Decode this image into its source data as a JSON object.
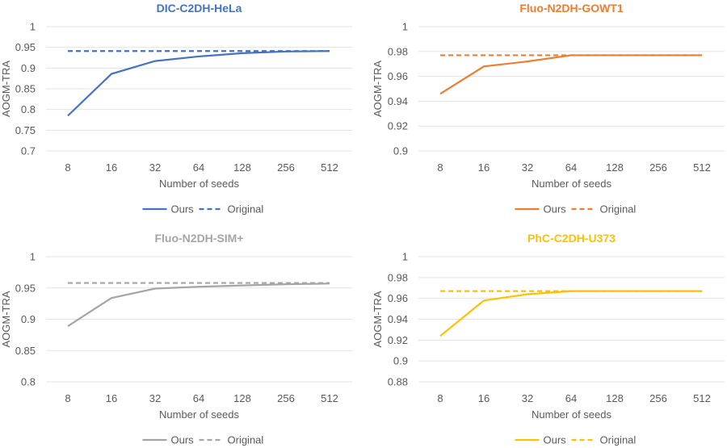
{
  "chart_data": [
    {
      "type": "line",
      "title": "DIC-C2DH-HeLa",
      "color": "#4472C4",
      "xlabel": "Number of seeds",
      "ylabel": "AOGM-TRA",
      "categories": [
        "8",
        "16",
        "32",
        "64",
        "128",
        "256",
        "512"
      ],
      "ylim": [
        0.7,
        1
      ],
      "yticks": [
        "0.7",
        "0.75",
        "0.8",
        "0.85",
        "0.9",
        "0.95",
        "1"
      ],
      "series": [
        {
          "name": "Ours",
          "style": "solid",
          "values": [
            0.785,
            0.886,
            0.917,
            0.928,
            0.936,
            0.94,
            0.941
          ]
        },
        {
          "name": "Original",
          "style": "dashed",
          "values": [
            0.941,
            0.941,
            0.941,
            0.941,
            0.941,
            0.941,
            0.941
          ]
        }
      ],
      "legend": "bottom"
    },
    {
      "type": "line",
      "title": "Fluo-N2DH-GOWT1",
      "color": "#ED7D31",
      "xlabel": "Number of seeds",
      "ylabel": "AOGM-TRA",
      "categories": [
        "8",
        "16",
        "32",
        "64",
        "128",
        "256",
        "512"
      ],
      "ylim": [
        0.9,
        1
      ],
      "yticks": [
        "0.9",
        "0.92",
        "0.94",
        "0.96",
        "0.98",
        "1"
      ],
      "series": [
        {
          "name": "Ours",
          "style": "solid",
          "values": [
            0.946,
            0.968,
            0.972,
            0.977,
            0.977,
            0.977,
            0.977
          ]
        },
        {
          "name": "Original",
          "style": "dashed",
          "values": [
            0.977,
            0.977,
            0.977,
            0.977,
            0.977,
            0.977,
            0.977
          ]
        }
      ],
      "legend": "bottom"
    },
    {
      "type": "line",
      "title": "Fluo-N2DH-SIM+",
      "color": "#A5A5A5",
      "xlabel": "Number of seeds",
      "ylabel": "AOGM-TRA",
      "categories": [
        "8",
        "16",
        "32",
        "64",
        "128",
        "256",
        "512"
      ],
      "ylim": [
        0.8,
        1
      ],
      "yticks": [
        "0.8",
        "0.85",
        "0.9",
        "0.95",
        "1"
      ],
      "series": [
        {
          "name": "Ours",
          "style": "solid",
          "values": [
            0.889,
            0.934,
            0.949,
            0.952,
            0.954,
            0.956,
            0.957
          ]
        },
        {
          "name": "Original",
          "style": "dashed",
          "values": [
            0.958,
            0.958,
            0.958,
            0.958,
            0.958,
            0.958,
            0.958
          ]
        }
      ],
      "legend": "bottom"
    },
    {
      "type": "line",
      "title": "PhC-C2DH-U373",
      "color": "#FFC000",
      "xlabel": "Number of seeds",
      "ylabel": "AOGM-TRA",
      "categories": [
        "8",
        "16",
        "32",
        "64",
        "128",
        "256",
        "512"
      ],
      "ylim": [
        0.88,
        1
      ],
      "yticks": [
        "0.88",
        "0.9",
        "0.92",
        "0.94",
        "0.96",
        "0.98",
        "1"
      ],
      "series": [
        {
          "name": "Ours",
          "style": "solid",
          "values": [
            0.924,
            0.958,
            0.964,
            0.967,
            0.967,
            0.967,
            0.967
          ]
        },
        {
          "name": "Original",
          "style": "dashed",
          "values": [
            0.967,
            0.967,
            0.967,
            0.967,
            0.967,
            0.967,
            0.967
          ]
        }
      ],
      "legend": "bottom"
    }
  ]
}
